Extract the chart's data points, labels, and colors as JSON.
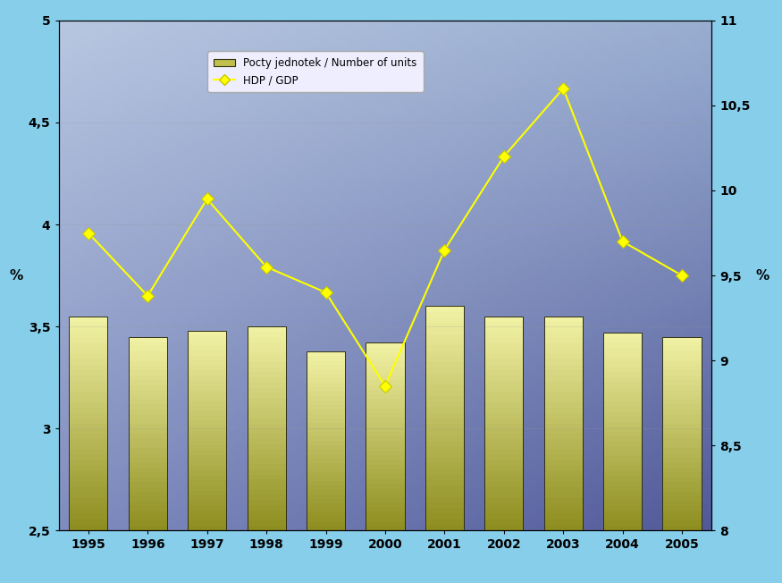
{
  "years": [
    1995,
    1996,
    1997,
    1998,
    1999,
    2000,
    2001,
    2002,
    2003,
    2004,
    2005
  ],
  "bar_values": [
    3.55,
    3.45,
    3.48,
    3.5,
    3.38,
    3.42,
    3.6,
    3.55,
    3.55,
    3.47,
    3.45
  ],
  "gdp_values": [
    9.75,
    9.38,
    9.95,
    9.55,
    9.4,
    8.85,
    9.65,
    10.2,
    10.6,
    9.7,
    9.5
  ],
  "left_ylim": [
    2.5,
    5.0
  ],
  "right_ylim": [
    8.0,
    11.0
  ],
  "left_yticks": [
    2.5,
    3.0,
    3.5,
    4.0,
    4.5,
    5.0
  ],
  "right_yticks": [
    8.0,
    8.5,
    9.0,
    9.5,
    10.0,
    10.5,
    11.0
  ],
  "left_ylabel": "%",
  "right_ylabel": "%",
  "legend_bar": "Pocty jednotek / Number of units",
  "legend_line": "HDP / GDP",
  "bar_color_top": "#f0f0a0",
  "bar_color_bottom": "#8c8c20",
  "bar_edge_color": "#303010",
  "line_color": "#ffff00",
  "marker_face": "#ffff00",
  "marker_edge": "#c8c800",
  "bg_outer": "#87ceeb",
  "legend_bg": "#eeeeff",
  "legend_edge": "#aaaaaa"
}
